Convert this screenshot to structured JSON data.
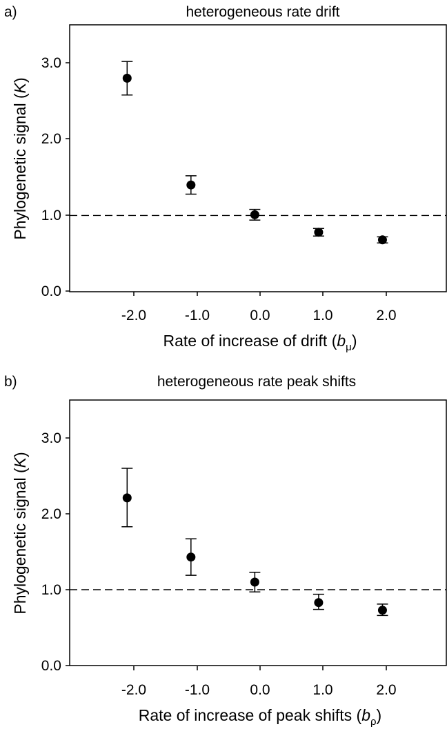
{
  "chart_data": [
    {
      "panel_label": "a)",
      "type": "scatter",
      "title": "heterogeneous rate drift",
      "xlabel": "Rate of increase of drift (",
      "xlabel_var": "b",
      "xlabel_sub": "μ",
      "xlabel_end": ")",
      "ylabel": "Phylogenetic signal (",
      "ylabel_var": "K",
      "ylabel_end": ")",
      "x_ticks": [
        "-2.0",
        "-1.0",
        "0.0",
        "1.0",
        "2.0"
      ],
      "y_ticks": [
        "0.0",
        "1.0",
        "2.0",
        "3.0"
      ],
      "xlim": [
        -2.9,
        3.0
      ],
      "ylim": [
        0,
        3.5
      ],
      "reference_line": 1.0,
      "series": [
        {
          "x": [
            -2,
            -1,
            0,
            1,
            2
          ],
          "y": [
            2.8,
            1.4,
            1.01,
            0.78,
            0.68
          ],
          "err_low": [
            2.58,
            1.28,
            0.94,
            0.73,
            0.64
          ],
          "err_high": [
            3.02,
            1.52,
            1.08,
            0.83,
            0.72
          ]
        }
      ]
    },
    {
      "panel_label": "b)",
      "type": "scatter",
      "title": "heterogeneous rate peak shifts",
      "xlabel": "Rate of increase of peak shifts (",
      "xlabel_var": "b",
      "xlabel_sub": "ρ",
      "xlabel_end": ")",
      "ylabel": "Phylogenetic signal (",
      "ylabel_var": "K",
      "ylabel_end": ")",
      "x_ticks": [
        "-2.0",
        "-1.0",
        "0.0",
        "1.0",
        "2.0"
      ],
      "y_ticks": [
        "0.0",
        "1.0",
        "2.0",
        "3.0"
      ],
      "xlim": [
        -2.9,
        3.0
      ],
      "ylim": [
        0,
        3.5
      ],
      "reference_line": 1.0,
      "series": [
        {
          "x": [
            -2,
            -1,
            0,
            1,
            2
          ],
          "y": [
            2.21,
            1.43,
            1.1,
            0.83,
            0.73
          ],
          "err_low": [
            1.83,
            1.19,
            0.97,
            0.74,
            0.66
          ],
          "err_high": [
            2.6,
            1.67,
            1.23,
            0.94,
            0.81
          ]
        }
      ]
    }
  ]
}
